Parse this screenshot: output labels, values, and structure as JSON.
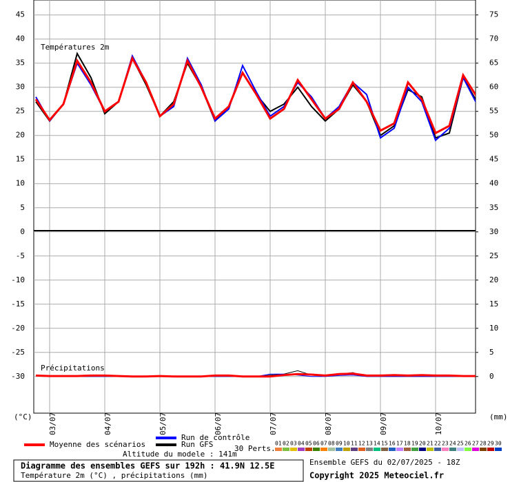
{
  "chart_data": {
    "type": "line",
    "title": "Températures 2m",
    "subtitle": "Précipitations",
    "y_unit": "(°C)",
    "y2_unit": "(mm)",
    "categories": [
      null,
      "03/07",
      null,
      null,
      null,
      "04/07",
      null,
      null,
      null,
      "05/07",
      null,
      null,
      null,
      "06/07",
      null,
      null,
      null,
      "07/07",
      null,
      null,
      null,
      "08/07",
      null,
      null,
      null,
      "09/07",
      null,
      null,
      null,
      "10/07",
      null,
      null,
      null
    ],
    "ylim": [
      -37.6,
      48.1
    ],
    "yticks": [
      45,
      40,
      35,
      30,
      25,
      20,
      15,
      10,
      5,
      0,
      -5,
      -10,
      -15,
      -20,
      -25,
      -30
    ],
    "y2lim": [
      -7.6,
      78.1
    ],
    "y2ticks": [
      75,
      70,
      65,
      60,
      55,
      50,
      45,
      40,
      35,
      30,
      25,
      20,
      15,
      10,
      5,
      0
    ],
    "grid": true,
    "series": [
      {
        "name": "Run GFS",
        "color": "#000000",
        "width": 2,
        "values": [
          27,
          23,
          26.5,
          37,
          32,
          24.5,
          27,
          36,
          30.5,
          24,
          27,
          35,
          30,
          23,
          26,
          33,
          28.5,
          25,
          26.5,
          30,
          26,
          23,
          25.5,
          30.5,
          27,
          20,
          22,
          29.5,
          28,
          19.5,
          20.5,
          32,
          27
        ]
      },
      {
        "name": "Run de contrôle",
        "color": "#0000ff",
        "width": 2,
        "values": [
          28,
          23,
          26.5,
          35,
          30.5,
          25,
          27,
          36.5,
          31,
          24,
          26,
          36,
          30.5,
          23,
          25.5,
          34.5,
          29,
          24,
          26,
          31,
          28,
          23.5,
          26,
          31,
          28.5,
          19.5,
          21.5,
          30,
          27,
          19,
          21.5,
          32,
          26.5
        ]
      },
      {
        "name": "Moyenne des scénarios",
        "color": "#ff0000",
        "width": 3,
        "values": [
          27.5,
          23.2,
          26.5,
          35.5,
          31,
          25,
          27,
          36,
          31,
          24,
          26.5,
          35.5,
          30,
          23.5,
          26,
          33,
          28.5,
          23.5,
          25.5,
          31.5,
          27.5,
          23.5,
          25.5,
          31,
          27,
          21,
          22.5,
          31,
          27.5,
          20.5,
          22,
          32.5,
          28
        ]
      },
      {
        "name": "Run GFS",
        "color": "#000000",
        "width": 1,
        "axis": "y2",
        "values": [
          0.2,
          0,
          0,
          0,
          0,
          0,
          0,
          0,
          0,
          0,
          0,
          0,
          0,
          0,
          0,
          0,
          0,
          0.3,
          0.5,
          1.2,
          0.3,
          0,
          0.5,
          0.8,
          0,
          0,
          0,
          0,
          0,
          0,
          0,
          0,
          0
        ]
      },
      {
        "name": "Run de contrôle",
        "color": "#0000ff",
        "width": 1,
        "axis": "y2",
        "values": [
          0.2,
          0,
          0,
          0,
          0,
          0,
          0,
          0,
          0,
          0,
          0,
          0,
          0,
          0,
          0,
          0,
          0,
          0.5,
          0.5,
          0.3,
          0,
          0,
          0.2,
          0.3,
          0,
          0,
          0,
          0,
          0,
          0,
          0,
          0,
          0
        ]
      },
      {
        "name": "Moyenne des scénarios",
        "color": "#ff0000",
        "width": 3,
        "axis": "y2",
        "values": [
          0.2,
          0.1,
          0.1,
          0.1,
          0.2,
          0.2,
          0.1,
          0,
          0,
          0.1,
          0,
          0,
          0,
          0.2,
          0.2,
          0,
          0,
          0,
          0.3,
          0.5,
          0.4,
          0.2,
          0.5,
          0.6,
          0.2,
          0.2,
          0.3,
          0.2,
          0.3,
          0.2,
          0.2,
          0.1,
          0.1
        ]
      }
    ],
    "perturbations": {
      "label": "30 Perts.",
      "names": [
        "01",
        "02",
        "03",
        "04",
        "05",
        "06",
        "07",
        "08",
        "09",
        "10",
        "11",
        "12",
        "13",
        "14",
        "15",
        "16",
        "17",
        "18",
        "19",
        "20",
        "21",
        "22",
        "23",
        "24",
        "25",
        "26",
        "27",
        "28",
        "29",
        "30"
      ],
      "colors": [
        "#f08040",
        "#80c040",
        "#e0c000",
        "#a040c0",
        "#c04000",
        "#408000",
        "#ff8000",
        "#a0c0a0",
        "#4080c0",
        "#c0a000",
        "#604080",
        "#e06020",
        "#808080",
        "#00c080",
        "#806040",
        "#2060c0",
        "#c080ff",
        "#a06040",
        "#40a040",
        "#000080",
        "#c0c000",
        "#4060a0",
        "#ff80c0",
        "#408080",
        "#c0c0ff",
        "#80ff40",
        "#e000e0",
        "#804000",
        "#c00000",
        "#0040c0"
      ]
    },
    "annotations": {
      "altitude": "Altitude du modele : 141m"
    }
  },
  "footer": {
    "title": "Diagramme des ensembles GEFS sur 192h : 41.9N 12.5E",
    "subtitle": "Température 2m (°C) , précipitations (mm)",
    "run": "Ensemble GEFS du 02/07/2025 - 18Z",
    "copyright": "Copyright 2025 Meteociel.fr"
  }
}
